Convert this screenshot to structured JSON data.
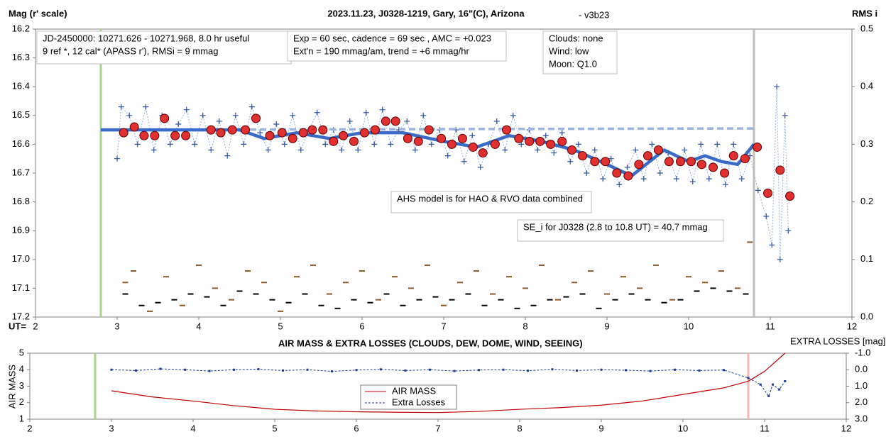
{
  "chart_data": [
    {
      "type": "scatter",
      "title": "2023.11.23, J0328-1219, Gary, 16\"(C), Arizona",
      "subtitle": "- v3b23",
      "ylabel": "Mag (r' scale)",
      "y2label": "RMS i",
      "xlabel": "UT=",
      "xlim": [
        2,
        12
      ],
      "xticks": [
        2,
        3,
        4,
        5,
        6,
        7,
        8,
        9,
        10,
        11,
        12
      ],
      "ylim": [
        16.2,
        17.2
      ],
      "y_reversed": true,
      "yticks": [
        16.2,
        16.3,
        16.4,
        16.5,
        16.6,
        16.7,
        16.8,
        16.9,
        {
          "value": 17,
          "label": "17.0"
        },
        17.1,
        17.2
      ],
      "y2lim": [
        0,
        0.5
      ],
      "y2ticks": [
        {
          "value": 0,
          "label": "0.0"
        },
        0.1,
        0.2,
        0.3,
        0.4,
        0.5
      ],
      "grid": false,
      "vlines": [
        {
          "x": 2.8,
          "color": "#a9d18e"
        },
        {
          "x": 10.8,
          "color": "#bfbfbf"
        }
      ],
      "annotations": [
        {
          "lines": [
            "JD-2450000: 10271.626 - 10271.968, 8.0 hr useful",
            "9 ref *, 12 cal*  (APASS r'), RMSi = 9 mmag"
          ]
        },
        {
          "lines": [
            "Exp = 60 sec, cadence = 69 sec , AMC = +0.023",
            "Ext'n = 190 mmag/am, trend = +6 mmag/hr"
          ]
        },
        {
          "lines": [
            "Clouds: none",
            "Wind:   low",
            "Moon:  Q1.0"
          ]
        },
        {
          "lines": [
            "AHS model is for HAO & RVO data combined"
          ]
        },
        {
          "lines": [
            "SE_i for J0328 (2.8 to 10.8 UT) = 40.7 mmag"
          ]
        }
      ],
      "series": [
        {
          "marker": "dash",
          "color": "#8b5a2b",
          "axis": "y2",
          "x": [
            3.1,
            3.2,
            3.4,
            3.6,
            3.8,
            4.0,
            4.2,
            4.4,
            4.6,
            4.8,
            5.0,
            5.2,
            5.4,
            5.6,
            5.8,
            6.0,
            6.2,
            6.4,
            6.6,
            6.8,
            7.0,
            7.2,
            7.4,
            7.6,
            7.8,
            8.0,
            8.2,
            8.4,
            8.6,
            8.8,
            9.0,
            9.2,
            9.4,
            9.6,
            9.8,
            10.0,
            10.2,
            10.4,
            10.6,
            10.75
          ],
          "values": [
            0.06,
            0.08,
            0.01,
            0.07,
            0.02,
            0.09,
            0.05,
            0.03,
            0.08,
            0.06,
            0.01,
            0.07,
            0.09,
            0.04,
            0.06,
            0.08,
            0.03,
            0.07,
            0.05,
            0.09,
            0.02,
            0.06,
            0.08,
            0.04,
            0.07,
            0.05,
            0.09,
            0.03,
            0.06,
            0.08,
            0.04,
            0.07,
            0.05,
            0.09,
            0.03,
            0.07,
            0.06,
            0.08,
            0.05,
            0.13
          ]
        },
        {
          "marker": "dash",
          "color": "#000000",
          "axis": "y2",
          "x": [
            3.1,
            3.3,
            3.5,
            3.7,
            3.9,
            4.1,
            4.3,
            4.5,
            4.7,
            4.9,
            5.1,
            5.3,
            5.5,
            5.7,
            5.9,
            6.1,
            6.3,
            6.5,
            6.7,
            6.9,
            7.1,
            7.3,
            7.5,
            7.7,
            7.9,
            8.1,
            8.3,
            8.5,
            8.7,
            8.9,
            9.1,
            9.3,
            9.5,
            9.7,
            9.9,
            10.1,
            10.3,
            10.5,
            10.7
          ],
          "values": [
            0.04,
            0.02,
            0.025,
            0.03,
            0.04,
            0.035,
            0.02,
            0.045,
            0.04,
            0.03,
            0.025,
            0.04,
            0.02,
            0.015,
            0.03,
            0.025,
            0.04,
            0.02,
            0.03,
            0.035,
            0.03,
            0.04,
            0.02,
            0.03,
            0.015,
            0.02,
            0.03,
            0.035,
            0.04,
            0.015,
            0.03,
            0.04,
            0.03,
            0.025,
            0.03,
            0.045,
            0.05,
            0.045,
            0.04
          ]
        },
        {
          "marker": "cross",
          "color": "#2f52a0",
          "connect": "#9bb3dc",
          "x": [
            3.0,
            3.05,
            3.15,
            3.25,
            3.35,
            3.45,
            3.55,
            3.65,
            3.75,
            3.85,
            3.95,
            4.05,
            4.15,
            4.25,
            4.35,
            4.45,
            4.55,
            4.65,
            4.75,
            4.85,
            4.95,
            5.05,
            5.15,
            5.25,
            5.35,
            5.45,
            5.55,
            5.65,
            5.75,
            5.85,
            5.95,
            6.05,
            6.15,
            6.25,
            6.35,
            6.45,
            6.55,
            6.65,
            6.75,
            6.85,
            6.95,
            7.05,
            7.15,
            7.25,
            7.35,
            7.45,
            7.55,
            7.65,
            7.75,
            7.85,
            7.95,
            8.05,
            8.15,
            8.25,
            8.35,
            8.45,
            8.55,
            8.65,
            8.75,
            8.85,
            8.95,
            9.05,
            9.15,
            9.25,
            9.35,
            9.45,
            9.55,
            9.65,
            9.75,
            9.85,
            9.95,
            10.05,
            10.15,
            10.25,
            10.35,
            10.45,
            10.55,
            10.65,
            10.75,
            10.85,
            10.95,
            11.02,
            11.08,
            11.12,
            11.18,
            11.22
          ],
          "values": [
            16.65,
            16.47,
            16.5,
            16.6,
            16.47,
            16.62,
            16.5,
            16.6,
            16.53,
            16.48,
            16.6,
            16.5,
            16.62,
            16.52,
            16.64,
            16.5,
            16.6,
            16.47,
            16.56,
            16.62,
            16.53,
            16.6,
            16.5,
            16.62,
            16.55,
            16.49,
            16.6,
            16.55,
            16.62,
            16.52,
            16.62,
            16.49,
            16.6,
            16.48,
            16.6,
            16.55,
            16.52,
            16.62,
            16.5,
            16.6,
            16.55,
            16.64,
            16.55,
            16.66,
            16.57,
            16.68,
            16.6,
            16.52,
            16.62,
            16.5,
            16.6,
            16.55,
            16.62,
            16.57,
            16.63,
            16.56,
            16.66,
            16.6,
            16.7,
            16.62,
            16.72,
            16.65,
            16.74,
            16.68,
            16.62,
            16.72,
            16.6,
            16.7,
            16.63,
            16.72,
            16.62,
            16.73,
            16.6,
            16.72,
            16.6,
            16.74,
            16.6,
            16.72,
            16.64,
            16.76,
            16.85,
            16.95,
            16.4,
            17.0,
            16.5,
            16.9
          ]
        },
        {
          "marker": "line",
          "color": "#9db4e0",
          "dashed": true,
          "width": 3.5,
          "x": [
            2.8,
            10.8
          ],
          "values": [
            16.55,
            16.545
          ]
        },
        {
          "marker": "line",
          "color": "#3a6bc9",
          "width": 4.5,
          "x": [
            2.8,
            3.5,
            4.5,
            4.8,
            5.2,
            5.6,
            6.0,
            6.5,
            7.0,
            7.4,
            7.8,
            8.2,
            8.6,
            9.0,
            9.3,
            9.7,
            10.0,
            10.2,
            10.4,
            10.6,
            10.8
          ],
          "values": [
            16.55,
            16.55,
            16.55,
            16.58,
            16.56,
            16.58,
            16.56,
            16.56,
            16.59,
            16.61,
            16.57,
            16.59,
            16.62,
            16.67,
            16.71,
            16.62,
            16.66,
            16.64,
            16.66,
            16.67,
            16.6
          ]
        },
        {
          "marker": "circle",
          "color": "#e03030",
          "x": [
            3.08,
            3.21,
            3.33,
            3.46,
            3.58,
            3.71,
            3.84,
            4.15,
            4.27,
            4.41,
            4.57,
            4.7,
            4.87,
            5.02,
            5.15,
            5.28,
            5.39,
            5.52,
            5.65,
            5.77,
            5.9,
            6.03,
            6.16,
            6.29,
            6.41,
            6.56,
            6.69,
            6.82,
            6.97,
            7.1,
            7.23,
            7.36,
            7.48,
            7.63,
            7.77,
            7.92,
            8.05,
            8.18,
            8.31,
            8.45,
            8.57,
            8.7,
            8.85,
            8.98,
            9.12,
            9.26,
            9.39,
            9.5,
            9.63,
            9.76,
            9.9,
            10.03,
            10.16,
            10.3,
            10.44,
            10.55,
            10.69,
            10.84,
            10.97,
            11.12,
            11.24
          ],
          "values": [
            16.56,
            16.54,
            16.57,
            16.57,
            16.51,
            16.57,
            16.57,
            16.55,
            16.56,
            16.55,
            16.55,
            16.51,
            16.57,
            16.56,
            16.58,
            16.56,
            16.55,
            16.55,
            16.59,
            16.57,
            16.59,
            16.56,
            16.55,
            16.52,
            16.52,
            16.58,
            16.59,
            16.55,
            16.58,
            16.6,
            16.58,
            16.61,
            16.63,
            16.6,
            16.55,
            16.58,
            16.59,
            16.59,
            16.6,
            16.59,
            16.62,
            16.64,
            16.66,
            16.66,
            16.7,
            16.71,
            16.67,
            16.64,
            16.62,
            16.66,
            16.66,
            16.66,
            16.67,
            16.68,
            16.7,
            16.64,
            16.65,
            16.61,
            16.77,
            16.69,
            16.78
          ]
        }
      ]
    },
    {
      "type": "line",
      "title": "AIR MASS & EXTRA LOSSES (CLOUDS, DEW, DOME, WIND, SEEING)",
      "ylabel": "AIR MASS",
      "y2label": "EXTRA LOSSES [mag]",
      "xlim": [
        2,
        12
      ],
      "xticks": [
        2,
        3,
        4,
        5,
        6,
        7,
        8,
        9,
        10,
        11,
        12
      ],
      "ylim": [
        1,
        5
      ],
      "yticks": [
        1,
        2,
        3,
        4,
        5
      ],
      "y2lim": [
        -1,
        3
      ],
      "y2_reversed": true,
      "y2ticks": [
        {
          "value": -1,
          "label": "-1.0"
        },
        {
          "value": 0,
          "label": "0.0"
        },
        {
          "value": 1,
          "label": "1.0"
        },
        {
          "value": 2,
          "label": "2.0"
        },
        {
          "value": 3,
          "label": "3.0"
        }
      ],
      "grid": false,
      "vlines": [
        {
          "x": 2.8,
          "color": "#a9d18e"
        },
        {
          "x": 10.8,
          "color": "#f4b6b6"
        }
      ],
      "series": [
        {
          "name": "AIR MASS",
          "marker": "line",
          "color": "#c00000",
          "width": 1.2,
          "x": [
            3.0,
            3.5,
            4.0,
            4.5,
            5.0,
            5.5,
            6.0,
            6.5,
            7.0,
            7.5,
            8.0,
            8.5,
            9.0,
            9.5,
            10.0,
            10.5,
            10.8,
            11.0,
            11.25
          ],
          "values": [
            2.72,
            2.35,
            2.1,
            1.82,
            1.6,
            1.5,
            1.45,
            1.42,
            1.4,
            1.47,
            1.6,
            1.7,
            1.85,
            2.1,
            2.5,
            2.9,
            3.3,
            3.9,
            5.0
          ]
        },
        {
          "name": "Extra Losses",
          "marker": "dots",
          "color": "#1f3a93",
          "axis": "y2",
          "x": [
            3.0,
            3.3,
            3.6,
            3.9,
            4.2,
            4.5,
            4.8,
            5.1,
            5.4,
            5.7,
            6.0,
            6.3,
            6.6,
            6.9,
            7.2,
            7.5,
            7.8,
            8.1,
            8.4,
            8.7,
            9.0,
            9.3,
            9.6,
            9.9,
            10.2,
            10.5,
            10.8,
            10.95,
            11.05,
            11.1,
            11.18,
            11.25
          ],
          "values": [
            0.0,
            0.05,
            -0.05,
            0.0,
            0.08,
            0.0,
            -0.03,
            0.05,
            0.0,
            0.1,
            0.02,
            -0.02,
            0.05,
            0.0,
            0.08,
            0.02,
            0.0,
            0.06,
            -0.02,
            0.05,
            0.0,
            0.03,
            0.08,
            0.0,
            0.05,
            0.02,
            0.5,
            0.9,
            1.6,
            0.9,
            1.2,
            0.7
          ]
        }
      ]
    }
  ]
}
